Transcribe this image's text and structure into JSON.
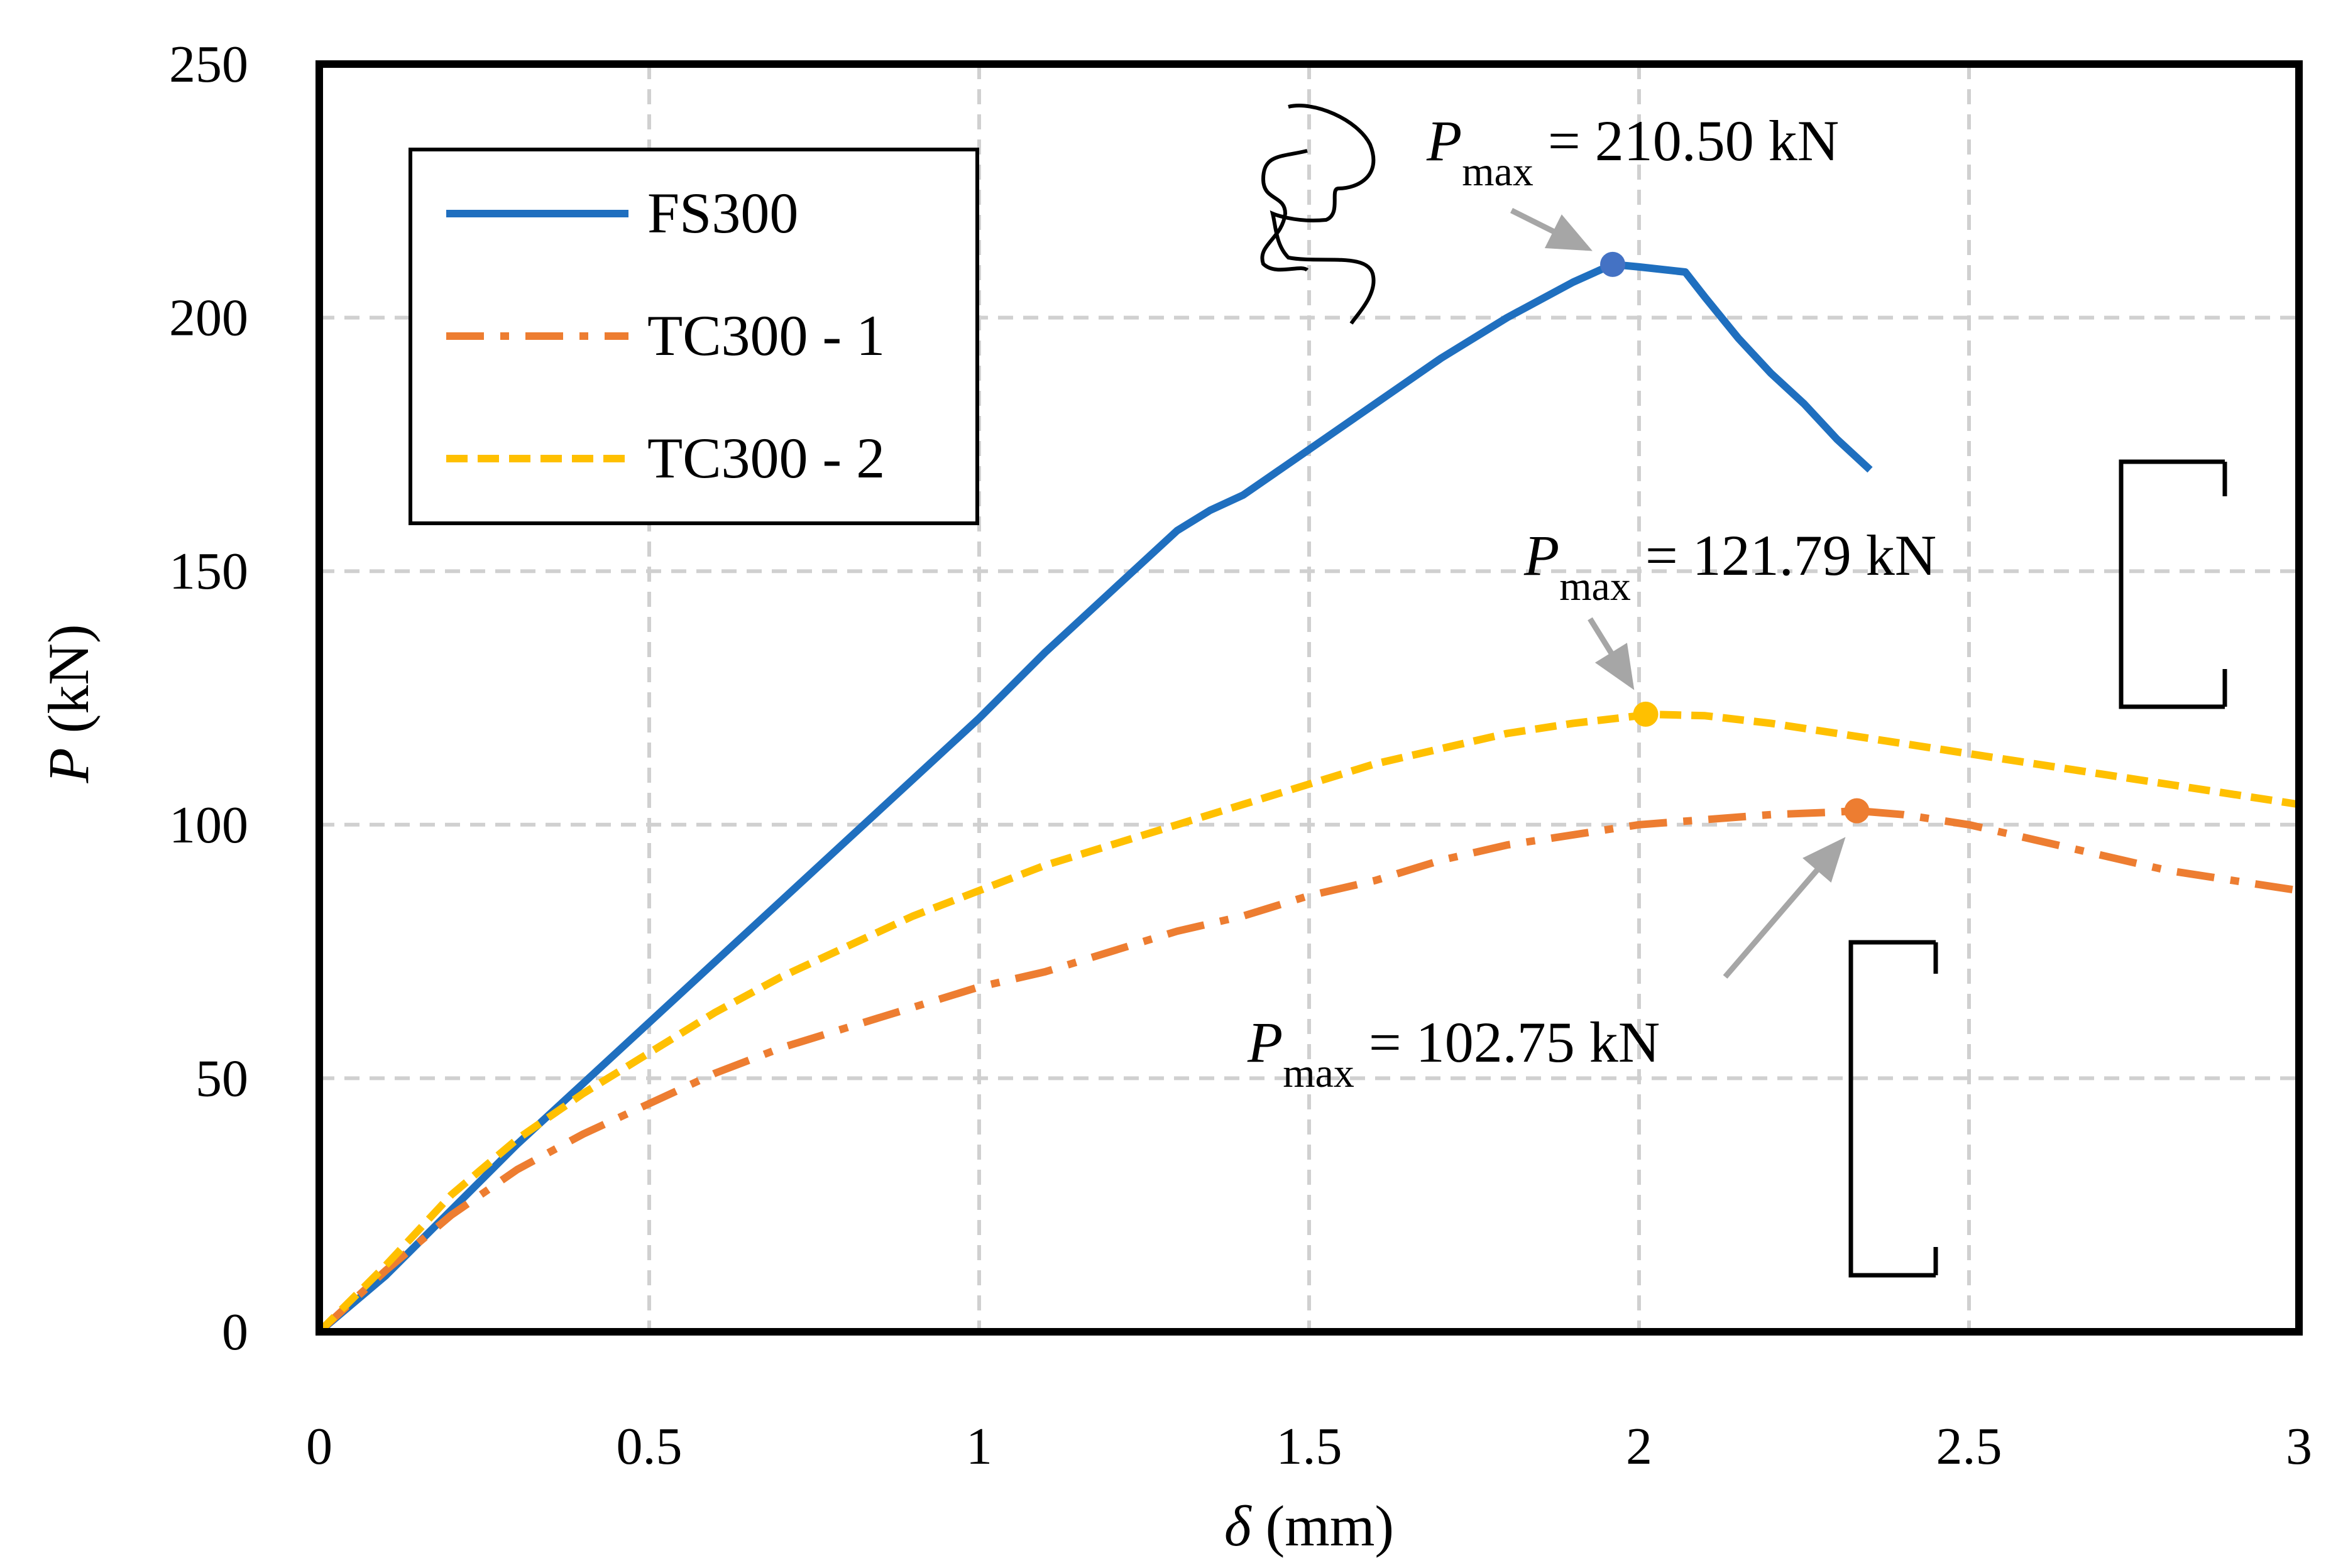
{
  "chart_data": {
    "type": "line",
    "xlabel": {
      "symbol": "δ",
      "unit": " (mm)"
    },
    "ylabel": {
      "symbol": "P",
      "unit": " (kN)"
    },
    "xlim": [
      0,
      3
    ],
    "ylim": [
      0,
      250
    ],
    "xticks": [
      0,
      0.5,
      1,
      1.5,
      2,
      2.5,
      3
    ],
    "xtick_labels": [
      "0",
      "0.5",
      "1",
      "1.5",
      "2",
      "2.5",
      "3"
    ],
    "yticks": [
      0,
      50,
      100,
      150,
      200,
      250
    ],
    "ytick_labels": [
      "0",
      "50",
      "100",
      "150",
      "200",
      "250"
    ],
    "grid": true,
    "legend_position": "top-left",
    "series": [
      {
        "name": "FS300",
        "color": "#1f6fbf",
        "style": "solid",
        "x": [
          0,
          0.1,
          0.2,
          0.3,
          0.4,
          0.5,
          0.6,
          0.7,
          0.8,
          0.9,
          1.0,
          1.1,
          1.2,
          1.3,
          1.35,
          1.4,
          1.5,
          1.6,
          1.7,
          1.8,
          1.9,
          1.96,
          2.0,
          2.07,
          2.1,
          2.15,
          2.2,
          2.25,
          2.3,
          2.35
        ],
        "y": [
          0,
          11,
          24,
          37,
          49,
          61,
          73,
          85,
          97,
          109,
          121,
          134,
          146,
          158,
          162,
          165,
          174,
          183,
          192,
          200,
          207,
          210.5,
          210,
          209,
          204,
          196,
          189,
          183,
          176,
          170
        ]
      },
      {
        "name": "TC300 - 1",
        "color": "#ed7d31",
        "style": "dash-dot",
        "x": [
          0,
          0.1,
          0.2,
          0.3,
          0.4,
          0.5,
          0.6,
          0.7,
          0.8,
          0.9,
          1.0,
          1.1,
          1.2,
          1.3,
          1.4,
          1.5,
          1.6,
          1.7,
          1.8,
          1.9,
          2.0,
          2.1,
          2.2,
          2.3,
          2.33,
          2.4,
          2.5,
          2.6,
          2.7,
          2.8,
          2.9,
          3.0
        ],
        "y": [
          0,
          12,
          23,
          32,
          39,
          45,
          51,
          56,
          60,
          64,
          68,
          71,
          75,
          79,
          82,
          86,
          89,
          93,
          96,
          98,
          100,
          101,
          102,
          102.5,
          102.75,
          102,
          100,
          97,
          94,
          91,
          89,
          87
        ]
      },
      {
        "name": "TC300 - 2",
        "color": "#ffc000",
        "style": "dashed",
        "x": [
          0,
          0.1,
          0.2,
          0.3,
          0.4,
          0.5,
          0.6,
          0.7,
          0.8,
          0.9,
          1.0,
          1.1,
          1.2,
          1.3,
          1.4,
          1.5,
          1.6,
          1.7,
          1.8,
          1.9,
          2.0,
          2.01,
          2.1,
          2.2,
          2.3,
          2.4,
          2.5,
          2.6,
          2.7,
          2.8,
          2.9,
          3.0
        ],
        "y": [
          0,
          13,
          27,
          38,
          47,
          55,
          63,
          70,
          76,
          82,
          87,
          92,
          96,
          100,
          104,
          108,
          112,
          115,
          118,
          120,
          121.5,
          121.79,
          121.5,
          120,
          118,
          116,
          114,
          112,
          110,
          108,
          106,
          104
        ]
      }
    ],
    "annotations": [
      {
        "symbol": "P",
        "sub": "max",
        "text": " = 210.50 kN",
        "x": 1.96,
        "y": 210.5,
        "series": "FS300",
        "color": "#4472c4"
      },
      {
        "symbol": "P",
        "sub": "max",
        "text": " = 121.79 kN",
        "x": 2.01,
        "y": 121.79,
        "series": "TC300 - 2",
        "color": "#ffc000"
      },
      {
        "symbol": "P",
        "sub": "max",
        "text": " = 102.75 kN",
        "x": 2.33,
        "y": 102.75,
        "series": "TC300 - 1",
        "color": "#ed7d31"
      }
    ]
  }
}
